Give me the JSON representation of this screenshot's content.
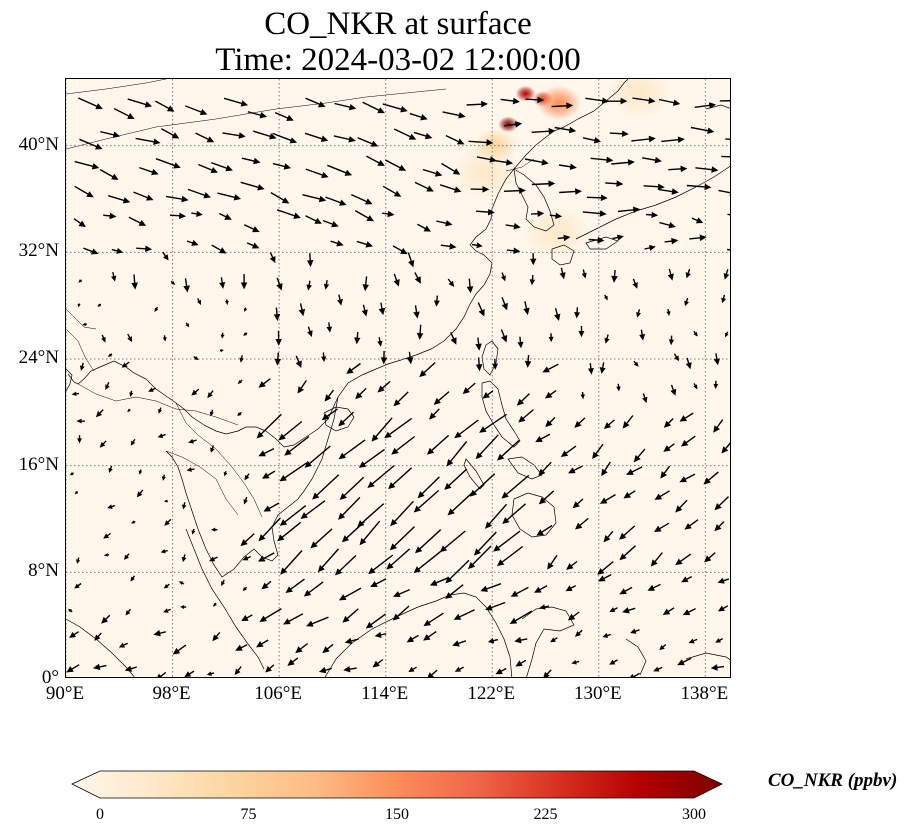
{
  "title": {
    "line1": "CO_NKR at surface",
    "line2": "Time: 2024-03-02 12:00:00"
  },
  "map": {
    "extent": {
      "lon_min": 90,
      "lon_max": 140,
      "lat_min": 0,
      "lat_max": 45
    },
    "projection": "PlateCarree",
    "gridlines": "dotted",
    "lon_ticks": [
      {
        "value": 90,
        "label": "90°E"
      },
      {
        "value": 98,
        "label": "98°E"
      },
      {
        "value": 106,
        "label": "106°E"
      },
      {
        "value": 114,
        "label": "114°E"
      },
      {
        "value": 122,
        "label": "122°E"
      },
      {
        "value": 130,
        "label": "130°E"
      },
      {
        "value": 138,
        "label": "138°E"
      }
    ],
    "lat_ticks": [
      {
        "value": 0,
        "label": "0°"
      },
      {
        "value": 8,
        "label": "8°N"
      },
      {
        "value": 16,
        "label": "16°N"
      },
      {
        "value": 24,
        "label": "24°N"
      },
      {
        "value": 32,
        "label": "32°N"
      },
      {
        "value": 40,
        "label": "40°N"
      }
    ],
    "background_color": "#fff7ec",
    "hotspots": [
      {
        "lon": 123.2,
        "lat": 41.6,
        "value": 300
      },
      {
        "lon": 124.5,
        "lat": 43.9,
        "value": 280
      },
      {
        "lon": 125.8,
        "lat": 43.5,
        "value": 210
      },
      {
        "lon": 127.0,
        "lat": 43.2,
        "value": 140
      },
      {
        "lon": 122.2,
        "lat": 40.0,
        "value": 90
      },
      {
        "lon": 121.5,
        "lat": 38.0,
        "value": 40
      },
      {
        "lon": 126.8,
        "lat": 33.5,
        "value": 30
      },
      {
        "lon": 133.0,
        "lat": 44.0,
        "value": 45
      }
    ]
  },
  "colorbar": {
    "label": "CO_NKR (ppbv)",
    "cmap": "OrRd",
    "colors": [
      "#fff7ec",
      "#fee8c8",
      "#fdd49e",
      "#fdbb84",
      "#fc8d59",
      "#ef6548",
      "#d7301f",
      "#b30000",
      "#7f0000"
    ],
    "min": 0,
    "max": 300,
    "extend": "both",
    "ticks": [
      {
        "value": 0,
        "label": "0"
      },
      {
        "value": 75,
        "label": "75"
      },
      {
        "value": 150,
        "label": "150"
      },
      {
        "value": 225,
        "label": "225"
      },
      {
        "value": 300,
        "label": "300"
      }
    ]
  }
}
